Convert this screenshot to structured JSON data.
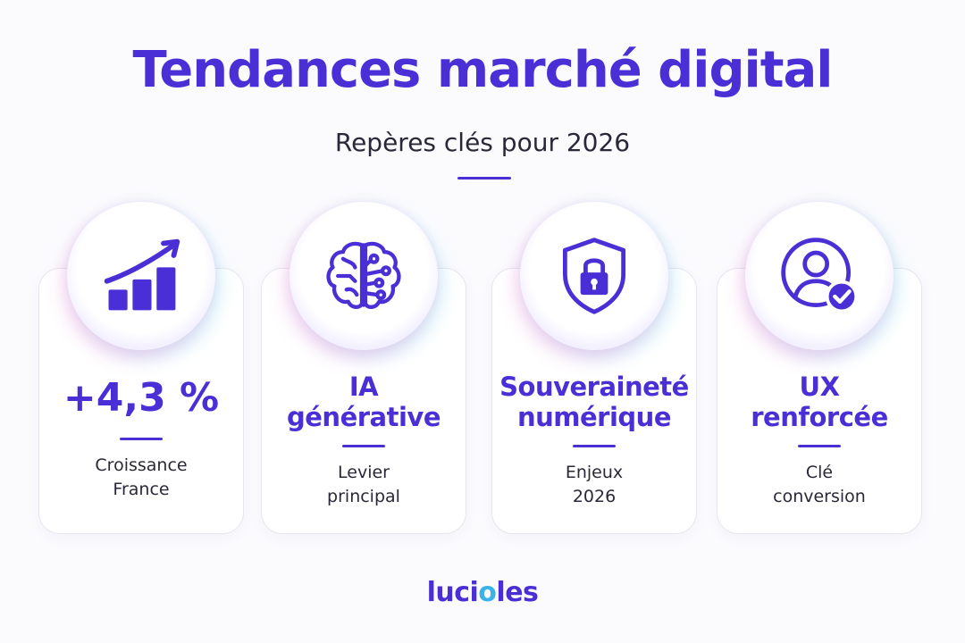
{
  "header": {
    "title": "Tendances marché digital",
    "subtitle": "Repères clés pour 2026"
  },
  "cards": [
    {
      "icon": "growth-chart-icon",
      "value_lines": [
        "+4,3 %"
      ],
      "caption_lines": [
        "Croissance",
        "France"
      ]
    },
    {
      "icon": "brain-circuit-icon",
      "value_lines": [
        "IA",
        "générative"
      ],
      "caption_lines": [
        "Levier",
        "principal"
      ]
    },
    {
      "icon": "shield-lock-icon",
      "value_lines": [
        "Souveraineté",
        "numérique"
      ],
      "caption_lines": [
        "Enjeux",
        "2026"
      ]
    },
    {
      "icon": "user-check-icon",
      "value_lines": [
        "UX",
        "renforcée"
      ],
      "caption_lines": [
        "Clé",
        "conversion"
      ]
    }
  ],
  "brand": {
    "logo_text_start": "luci",
    "logo_text_mid": "o",
    "logo_text_end": "les",
    "primary_color": "#4b2fd6",
    "accent_color": "#3ab4e8"
  }
}
